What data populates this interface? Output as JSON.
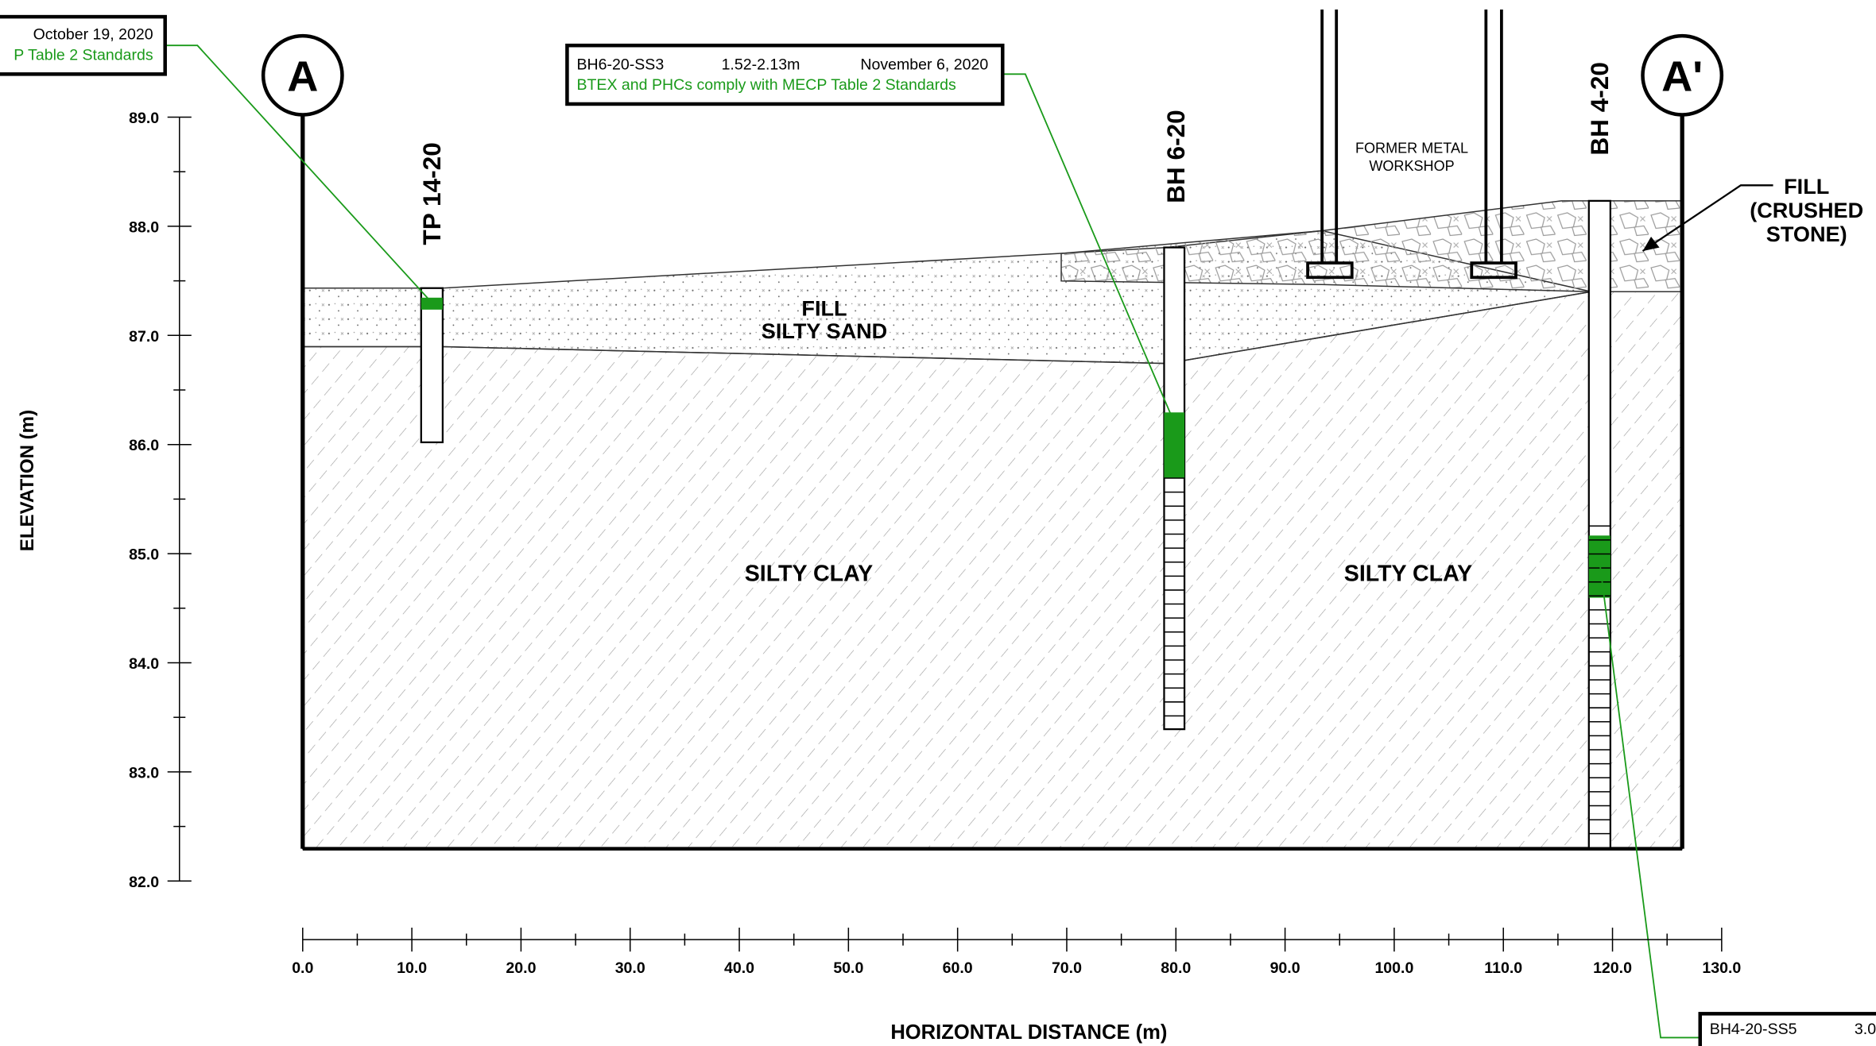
{
  "callouts": [
    {
      "sample": "BH6-20-SS3",
      "depth": "1.52-2.13m",
      "date": "November 6, 2020",
      "note": "BTEX and PHCs comply with MECP Table 2 Standards"
    },
    {
      "date": "October 19, 2020",
      "note": "P Table 2 Standards"
    },
    {
      "sample": "BH4-20-SS5",
      "depth": "3.0"
    }
  ],
  "section_markers": [
    "A",
    "A'"
  ],
  "boreholes": [
    "TP 14-20",
    "BH 6-20",
    "BH 4-20"
  ],
  "labels": {
    "fill": "FILL",
    "silty_sand": "SILTY SAND",
    "silty_clay_1": "SILTY CLAY",
    "silty_clay_2": "SILTY CLAY",
    "workshop_1": "FORMER METAL",
    "workshop_2": "WORKSHOP",
    "crushed_1": "FILL",
    "crushed_2": "(CRUSHED",
    "crushed_3": "STONE)"
  },
  "y_axis": {
    "title": "ELEVATION (m)",
    "ticks": [
      "89.0",
      "88.0",
      "87.0",
      "86.0",
      "85.0",
      "84.0",
      "83.0",
      "82.0"
    ]
  },
  "x_axis": {
    "title": "HORIZONTAL DISTANCE (m)",
    "ticks": [
      "0.0",
      "10.0",
      "20.0",
      "30.0",
      "40.0",
      "50.0",
      "60.0",
      "70.0",
      "80.0",
      "90.0",
      "100.0",
      "110.0",
      "120.0",
      "130.0"
    ]
  }
}
